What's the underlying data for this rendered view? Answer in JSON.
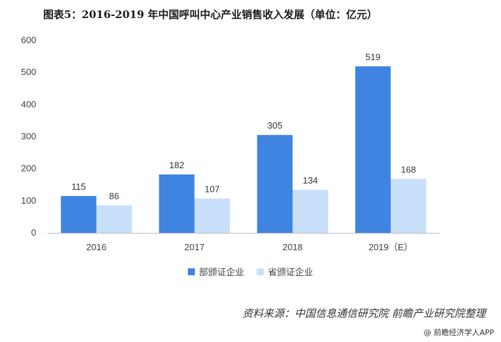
{
  "title": "图表5：2016-2019 年中国呼叫中心产业销售收入发展（单位：亿元）",
  "source": "资料来源：中国信息通信研究院  前瞻产业研究院整理",
  "footer": "@ 前瞻经济学人APP",
  "chart_data": {
    "type": "bar",
    "categories": [
      "2016",
      "2017",
      "2018",
      "2019（E）"
    ],
    "series": [
      {
        "name": "部颁证企业",
        "values": [
          115,
          182,
          305,
          519
        ],
        "color": "#3f84e0"
      },
      {
        "name": "省颁证企业",
        "values": [
          86,
          107,
          134,
          168
        ],
        "color": "#c9e0fa"
      }
    ],
    "ylim": [
      0,
      600
    ],
    "yticks": [
      0,
      100,
      200,
      300,
      400,
      500,
      600
    ],
    "grid": false,
    "legend_position": "bottom",
    "xlabel": "",
    "ylabel": ""
  }
}
